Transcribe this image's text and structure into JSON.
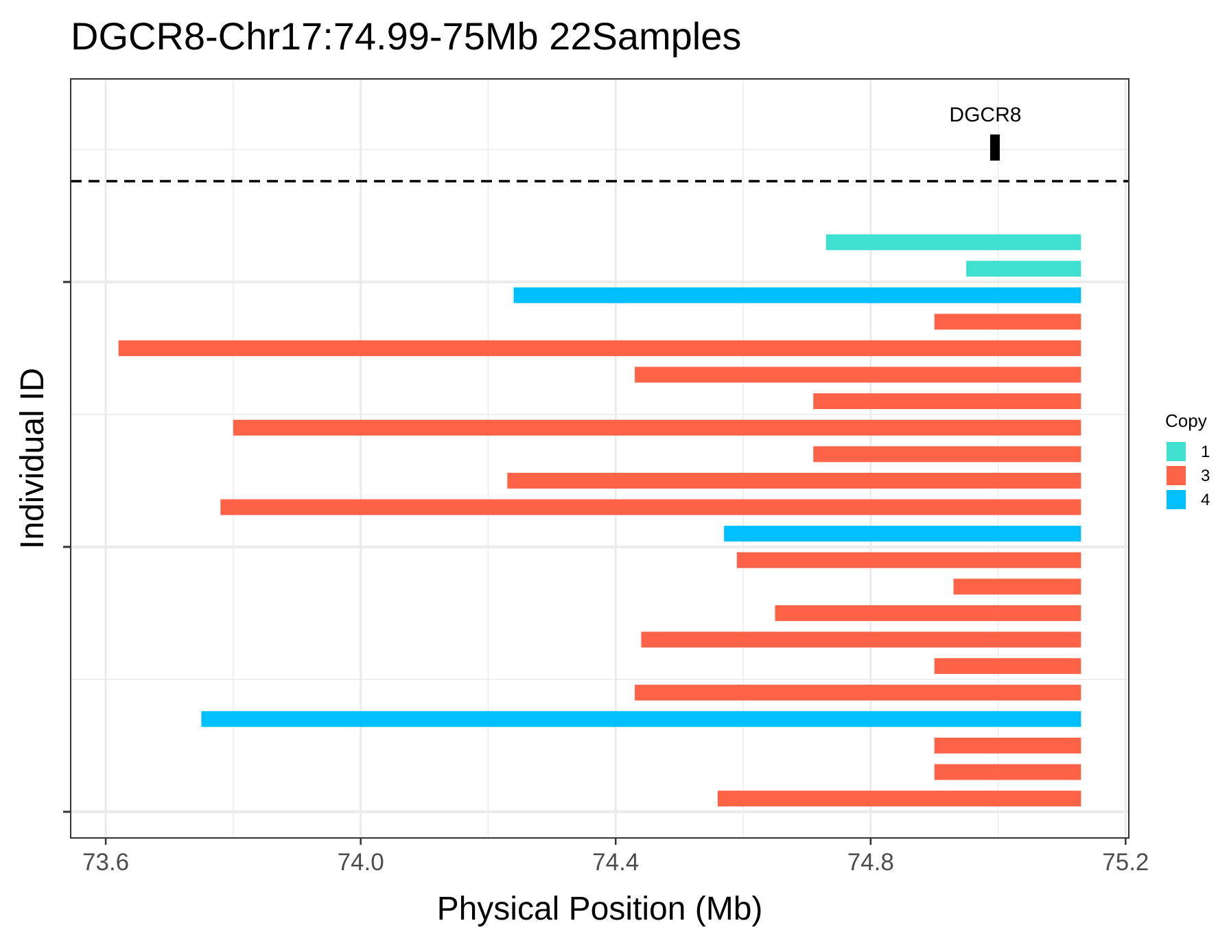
{
  "chart_data": {
    "type": "bar",
    "orientation": "horizontal-segments",
    "title": "DGCR8-Chr17:74.99-75Mb 22Samples",
    "xlabel": "Physical Position (Mb)",
    "ylabel": "Individual ID",
    "xlim": [
      73.545,
      75.205
    ],
    "x_ticks": [
      73.6,
      74.0,
      74.4,
      74.8,
      75.2
    ],
    "x_tick_labels": [
      "73.6",
      "74.0",
      "74.4",
      "74.8",
      "75.2"
    ],
    "grid": true,
    "legend": {
      "title": "Copy",
      "placement": "right",
      "entries": [
        {
          "label": "1",
          "color": "#40E0D0"
        },
        {
          "label": "3",
          "color": "#FF6347"
        },
        {
          "label": "4",
          "color": "#00BFFF"
        }
      ]
    },
    "gene": {
      "name": "DGCR8",
      "start": 74.99,
      "end": 75.0
    },
    "segments": [
      {
        "start": 74.73,
        "end": 75.13,
        "copy": "1"
      },
      {
        "start": 74.95,
        "end": 75.13,
        "copy": "1"
      },
      {
        "start": 74.24,
        "end": 75.13,
        "copy": "4"
      },
      {
        "start": 74.9,
        "end": 75.13,
        "copy": "3"
      },
      {
        "start": 73.62,
        "end": 75.13,
        "copy": "3"
      },
      {
        "start": 74.43,
        "end": 75.13,
        "copy": "3"
      },
      {
        "start": 74.71,
        "end": 75.13,
        "copy": "3"
      },
      {
        "start": 73.8,
        "end": 75.13,
        "copy": "3"
      },
      {
        "start": 74.71,
        "end": 75.13,
        "copy": "3"
      },
      {
        "start": 74.23,
        "end": 75.13,
        "copy": "3"
      },
      {
        "start": 73.78,
        "end": 75.13,
        "copy": "3"
      },
      {
        "start": 74.57,
        "end": 75.13,
        "copy": "4"
      },
      {
        "start": 74.59,
        "end": 75.13,
        "copy": "3"
      },
      {
        "start": 74.93,
        "end": 75.13,
        "copy": "3"
      },
      {
        "start": 74.65,
        "end": 75.13,
        "copy": "3"
      },
      {
        "start": 74.44,
        "end": 75.13,
        "copy": "3"
      },
      {
        "start": 74.9,
        "end": 75.13,
        "copy": "3"
      },
      {
        "start": 74.43,
        "end": 75.13,
        "copy": "3"
      },
      {
        "start": 73.75,
        "end": 75.13,
        "copy": "4"
      },
      {
        "start": 74.9,
        "end": 75.13,
        "copy": "3"
      },
      {
        "start": 74.9,
        "end": 75.13,
        "copy": "3"
      },
      {
        "start": 74.56,
        "end": 75.13,
        "copy": "3"
      }
    ]
  }
}
